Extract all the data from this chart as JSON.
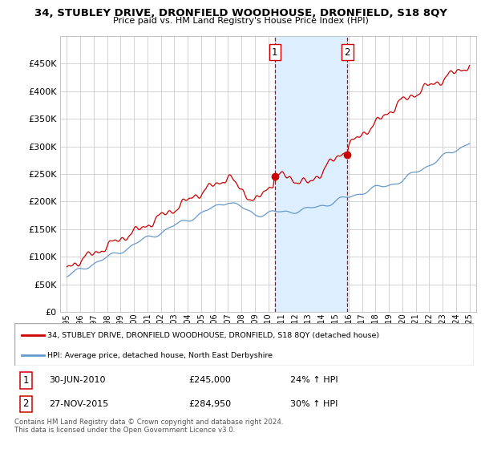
{
  "title": "34, STUBLEY DRIVE, DRONFIELD WOODHOUSE, DRONFIELD, S18 8QY",
  "subtitle": "Price paid vs. HM Land Registry's House Price Index (HPI)",
  "red_label": "34, STUBLEY DRIVE, DRONFIELD WOODHOUSE, DRONFIELD, S18 8QY (detached house)",
  "blue_label": "HPI: Average price, detached house, North East Derbyshire",
  "footnote": "Contains HM Land Registry data © Crown copyright and database right 2024.\nThis data is licensed under the Open Government Licence v3.0.",
  "transaction1_date": "30-JUN-2010",
  "transaction1_price": "£245,000",
  "transaction1_hpi": "24% ↑ HPI",
  "transaction2_date": "27-NOV-2015",
  "transaction2_price": "£284,950",
  "transaction2_hpi": "30% ↑ HPI",
  "marker1_x": 2010.5,
  "marker1_y": 245000,
  "marker2_x": 2015.9,
  "marker2_y": 284950,
  "vline1_x": 2010.5,
  "vline2_x": 2015.9,
  "red_color": "#cc0000",
  "blue_color": "#6699cc",
  "shaded_color": "#ddeeff",
  "vline_color": "#cc0000",
  "ylim": [
    0,
    500000
  ],
  "yticks": [
    0,
    50000,
    100000,
    150000,
    200000,
    250000,
    300000,
    350000,
    400000,
    450000
  ],
  "xlim": [
    1994.5,
    2025.5
  ],
  "xticks": [
    1995,
    1996,
    1997,
    1998,
    1999,
    2000,
    2001,
    2002,
    2003,
    2004,
    2005,
    2006,
    2007,
    2008,
    2009,
    2010,
    2011,
    2012,
    2013,
    2014,
    2015,
    2016,
    2017,
    2018,
    2019,
    2020,
    2021,
    2022,
    2023,
    2024,
    2025
  ]
}
